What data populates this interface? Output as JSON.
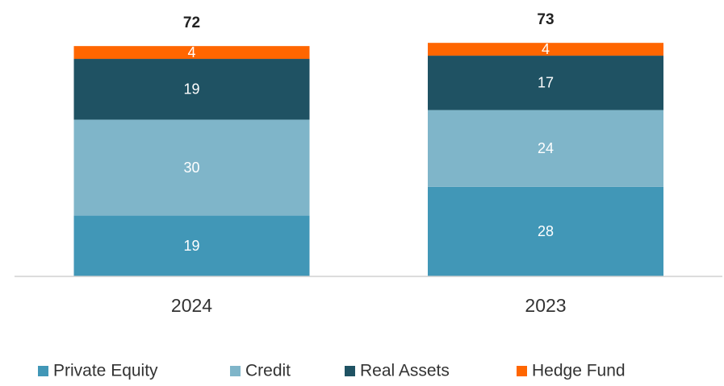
{
  "chart_data": {
    "type": "stacked_bar",
    "categories": [
      "2024",
      "2023"
    ],
    "series": [
      {
        "name": "Private Equity",
        "color": "#4197b7",
        "values": [
          19,
          28
        ]
      },
      {
        "name": "Credit",
        "color": "#7fb5c9",
        "values": [
          30,
          24
        ]
      },
      {
        "name": "Real Assets",
        "color": "#1f5263",
        "values": [
          19,
          17
        ]
      },
      {
        "name": "Hedge Fund",
        "color": "#ff6600",
        "values": [
          4,
          4
        ]
      }
    ],
    "totals": [
      72,
      73
    ],
    "legend": "bottom"
  }
}
